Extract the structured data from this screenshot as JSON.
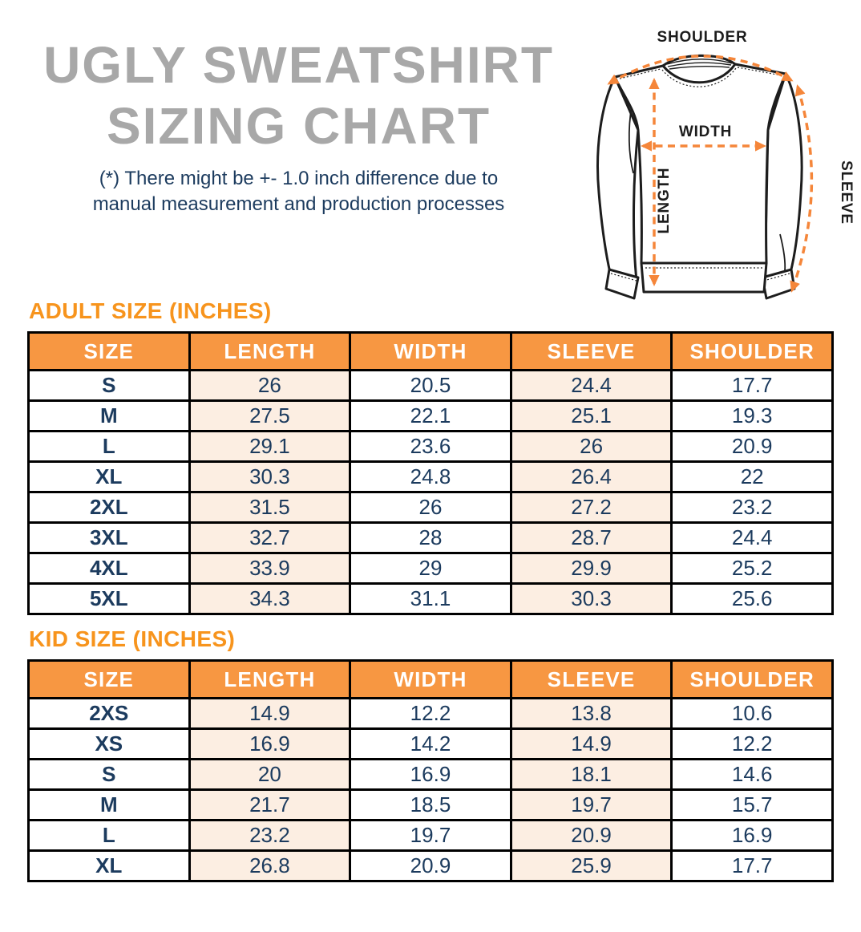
{
  "header": {
    "title_line1": "UGLY SWEATSHIRT",
    "title_line2": "SIZING CHART",
    "disclaimer_line1": "(*) There might be +- 1.0 inch difference due to",
    "disclaimer_line2": "manual measurement and production processes"
  },
  "diagram": {
    "shoulder_label": "SHOULDER",
    "width_label": "WIDTH",
    "length_label": "LENGTH",
    "sleeve_label": "SLEEVE"
  },
  "colors": {
    "accent_orange": "#F7941D",
    "table_header_orange": "#F79742",
    "arrow_orange": "#F5863A",
    "peach_cell": "#FCEEE2",
    "navy_text": "#1C3B5E",
    "title_gray": "#A8A8A8",
    "line_black": "#1D1D1D"
  },
  "adult_table": {
    "heading": "ADULT SIZE (INCHES)",
    "columns": [
      "SIZE",
      "LENGTH",
      "WIDTH",
      "SLEEVE",
      "SHOULDER"
    ],
    "rows": [
      {
        "size": "S",
        "values": [
          "26",
          "20.5",
          "24.4",
          "17.7"
        ]
      },
      {
        "size": "M",
        "values": [
          "27.5",
          "22.1",
          "25.1",
          "19.3"
        ]
      },
      {
        "size": "L",
        "values": [
          "29.1",
          "23.6",
          "26",
          "20.9"
        ]
      },
      {
        "size": "XL",
        "values": [
          "30.3",
          "24.8",
          "26.4",
          "22"
        ]
      },
      {
        "size": "2XL",
        "values": [
          "31.5",
          "26",
          "27.2",
          "23.2"
        ]
      },
      {
        "size": "3XL",
        "values": [
          "32.7",
          "28",
          "28.7",
          "24.4"
        ]
      },
      {
        "size": "4XL",
        "values": [
          "33.9",
          "29",
          "29.9",
          "25.2"
        ]
      },
      {
        "size": "5XL",
        "values": [
          "34.3",
          "31.1",
          "30.3",
          "25.6"
        ]
      }
    ]
  },
  "kid_table": {
    "heading": "KID SIZE (INCHES)",
    "columns": [
      "SIZE",
      "LENGTH",
      "WIDTH",
      "SLEEVE",
      "SHOULDER"
    ],
    "rows": [
      {
        "size": "2XS",
        "values": [
          "14.9",
          "12.2",
          "13.8",
          "10.6"
        ]
      },
      {
        "size": "XS",
        "values": [
          "16.9",
          "14.2",
          "14.9",
          "12.2"
        ]
      },
      {
        "size": "S",
        "values": [
          "20",
          "16.9",
          "18.1",
          "14.6"
        ]
      },
      {
        "size": "M",
        "values": [
          "21.7",
          "18.5",
          "19.7",
          "15.7"
        ]
      },
      {
        "size": "L",
        "values": [
          "23.2",
          "19.7",
          "20.9",
          "16.9"
        ]
      },
      {
        "size": "XL",
        "values": [
          "26.8",
          "20.9",
          "25.9",
          "17.7"
        ]
      }
    ]
  }
}
